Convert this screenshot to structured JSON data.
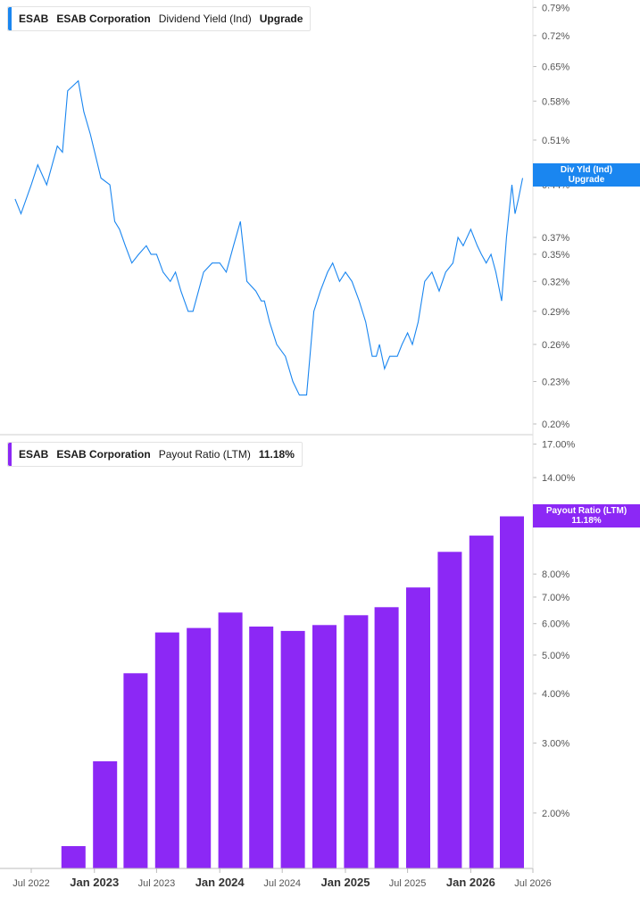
{
  "colors": {
    "yield_line": "#1a86f0",
    "payout_bar": "#8c28f5",
    "axis_text": "#555555",
    "divider": "#cfcfcf"
  },
  "chart_data": [
    {
      "type": "line",
      "legend": {
        "ticker": "ESAB",
        "company": "ESAB Corporation",
        "metric": "Dividend Yield (Ind)",
        "value": "Upgrade"
      },
      "tag": {
        "name": "Div Yld (Ind)",
        "value": "Upgrade"
      },
      "y_scale": "log",
      "ylim": [
        0.2,
        0.8
      ],
      "y_ticks": [
        {
          "v": 0.79,
          "label": "0.79%"
        },
        {
          "v": 0.72,
          "label": "0.72%"
        },
        {
          "v": 0.65,
          "label": "0.65%"
        },
        {
          "v": 0.58,
          "label": "0.58%"
        },
        {
          "v": 0.51,
          "label": "0.51%"
        },
        {
          "v": 0.44,
          "label": "0.44%"
        },
        {
          "v": 0.37,
          "label": "0.37%"
        },
        {
          "v": 0.35,
          "label": "0.35%"
        },
        {
          "v": 0.32,
          "label": "0.32%"
        },
        {
          "v": 0.29,
          "label": "0.29%"
        },
        {
          "v": 0.26,
          "label": "0.26%"
        },
        {
          "v": 0.23,
          "label": "0.23%"
        },
        {
          "v": 0.2,
          "label": "0.20%"
        }
      ],
      "x": [
        "2022-05-15",
        "2022-06-01",
        "2022-07-01",
        "2022-07-20",
        "2022-08-15",
        "2022-09-15",
        "2022-09-30",
        "2022-10-15",
        "2022-11-15",
        "2022-12-01",
        "2022-12-20",
        "2023-01-20",
        "2023-02-15",
        "2023-03-01",
        "2023-03-15",
        "2023-04-01",
        "2023-04-20",
        "2023-05-10",
        "2023-06-01",
        "2023-06-15",
        "2023-07-01",
        "2023-07-20",
        "2023-08-10",
        "2023-08-25",
        "2023-09-10",
        "2023-10-01",
        "2023-10-15",
        "2023-11-15",
        "2023-12-10",
        "2024-01-01",
        "2024-01-20",
        "2024-02-10",
        "2024-03-01",
        "2024-03-20",
        "2024-04-15",
        "2024-05-01",
        "2024-05-10",
        "2024-05-25",
        "2024-06-15",
        "2024-07-10",
        "2024-08-01",
        "2024-08-20",
        "2024-09-10",
        "2024-10-01",
        "2024-10-20",
        "2024-11-10",
        "2024-11-25",
        "2024-12-15",
        "2025-01-01",
        "2025-01-20",
        "2025-02-10",
        "2025-03-01",
        "2025-03-20",
        "2025-04-01",
        "2025-04-10",
        "2025-04-25",
        "2025-05-10",
        "2025-06-01",
        "2025-06-15",
        "2025-07-01",
        "2025-07-15",
        "2025-08-01",
        "2025-08-20",
        "2025-09-10",
        "2025-10-01",
        "2025-10-20",
        "2025-11-10",
        "2025-11-25",
        "2025-12-10",
        "2026-01-01",
        "2026-01-20",
        "2026-02-01",
        "2026-02-15",
        "2026-03-01",
        "2026-03-15",
        "2026-04-01",
        "2026-04-15",
        "2026-05-01",
        "2026-05-10",
        "2026-05-20",
        "2026-06-01"
      ],
      "values": [
        0.42,
        0.4,
        0.44,
        0.47,
        0.44,
        0.5,
        0.49,
        0.6,
        0.62,
        0.56,
        0.52,
        0.45,
        0.44,
        0.39,
        0.38,
        0.36,
        0.34,
        0.35,
        0.36,
        0.35,
        0.35,
        0.33,
        0.32,
        0.33,
        0.31,
        0.29,
        0.29,
        0.33,
        0.34,
        0.34,
        0.33,
        0.36,
        0.39,
        0.32,
        0.31,
        0.3,
        0.3,
        0.28,
        0.26,
        0.25,
        0.23,
        0.22,
        0.22,
        0.29,
        0.31,
        0.33,
        0.34,
        0.32,
        0.33,
        0.32,
        0.3,
        0.28,
        0.25,
        0.25,
        0.26,
        0.24,
        0.25,
        0.25,
        0.26,
        0.27,
        0.26,
        0.28,
        0.32,
        0.33,
        0.31,
        0.33,
        0.34,
        0.37,
        0.36,
        0.38,
        0.36,
        0.35,
        0.34,
        0.35,
        0.33,
        0.3,
        0.37,
        0.44,
        0.4,
        0.42,
        0.45
      ]
    },
    {
      "type": "bar",
      "legend": {
        "ticker": "ESAB",
        "company": "ESAB Corporation",
        "metric": "Payout Ratio (LTM)",
        "value": "11.18%"
      },
      "tag": {
        "name": "Payout Ratio (LTM)",
        "value": "11.18%"
      },
      "y_scale": "log",
      "ylim": [
        1.45,
        17.5
      ],
      "y_ticks": [
        {
          "v": 17,
          "label": "17.00%"
        },
        {
          "v": 14,
          "label": "14.00%"
        },
        {
          "v": 11,
          "label": "11.00%"
        },
        {
          "v": 8,
          "label": "8.00%"
        },
        {
          "v": 7,
          "label": "7.00%"
        },
        {
          "v": 6,
          "label": "6.00%"
        },
        {
          "v": 5,
          "label": "5.00%"
        },
        {
          "v": 4,
          "label": "4.00%"
        },
        {
          "v": 3,
          "label": "3.00%"
        },
        {
          "v": 2,
          "label": "2.00%"
        }
      ],
      "x": [
        "2022-11-01",
        "2023-02-01",
        "2023-05-01",
        "2023-08-01",
        "2023-11-01",
        "2024-02-01",
        "2024-05-01",
        "2024-08-01",
        "2024-11-01",
        "2025-02-01",
        "2025-05-01",
        "2025-08-01",
        "2025-11-01",
        "2026-02-01",
        "2026-05-01"
      ],
      "values": [
        1.65,
        2.7,
        4.5,
        5.7,
        5.85,
        6.4,
        5.9,
        5.75,
        5.95,
        6.3,
        6.6,
        7.4,
        9.1,
        10.0,
        11.18
      ]
    }
  ],
  "x_axis": {
    "ticks": [
      {
        "date": "2022-07-01",
        "label": "Jul 2022",
        "major": false
      },
      {
        "date": "2023-01-01",
        "label": "Jan 2023",
        "major": true
      },
      {
        "date": "2023-07-01",
        "label": "Jul 2023",
        "major": false
      },
      {
        "date": "2024-01-01",
        "label": "Jan 2024",
        "major": true
      },
      {
        "date": "2024-07-01",
        "label": "Jul 2024",
        "major": false
      },
      {
        "date": "2025-01-01",
        "label": "Jan 2025",
        "major": true
      },
      {
        "date": "2025-07-01",
        "label": "Jul 2025",
        "major": false
      },
      {
        "date": "2026-01-01",
        "label": "Jan 2026",
        "major": true
      },
      {
        "date": "2026-07-01",
        "label": "Jul 2026",
        "major": false
      }
    ]
  }
}
